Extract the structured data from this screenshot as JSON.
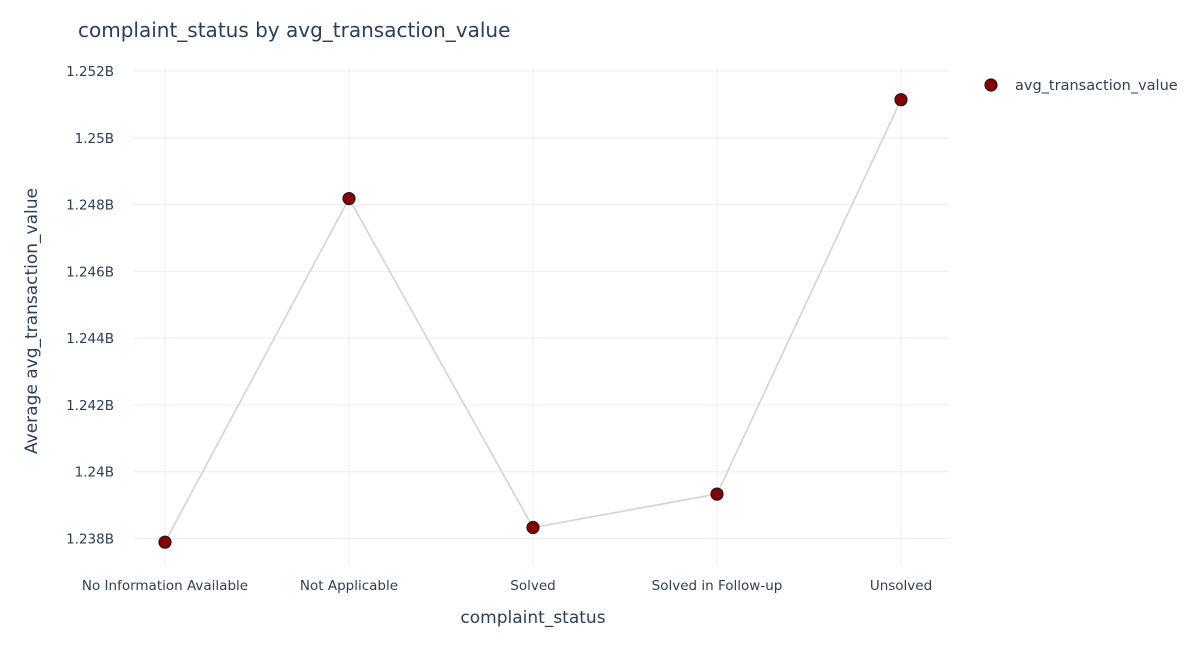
{
  "chart_data": {
    "type": "scatter",
    "mode": "lines+markers",
    "title": "complaint_status by avg_transaction_value",
    "xlabel": "complaint_status",
    "ylabel": "Average avg_transaction_value",
    "categories": [
      "No Information Available",
      "Not Applicable",
      "Solved",
      "Solved in Follow-up",
      "Unsolved"
    ],
    "series": [
      {
        "name": "avg_transaction_value",
        "values": [
          1237890000,
          1248180000,
          1238330000,
          1239330000,
          1251140000
        ]
      }
    ],
    "ylim": [
      1237000000,
      1252300000
    ],
    "yticks": [
      1238000000,
      1240000000,
      1242000000,
      1244000000,
      1246000000,
      1248000000,
      1250000000,
      1252000000
    ],
    "ytick_labels": [
      "1.238B",
      "1.24B",
      "1.242B",
      "1.244B",
      "1.246B",
      "1.248B",
      "1.25B",
      "1.252B"
    ],
    "grid": true,
    "legend": "top-right",
    "colors": {
      "marker_fill": "#8b0000",
      "marker_stroke": "#1a1a1a",
      "line": "#d3d3d3",
      "grid": "#ebeef2",
      "text": "#2a3f5f"
    }
  }
}
